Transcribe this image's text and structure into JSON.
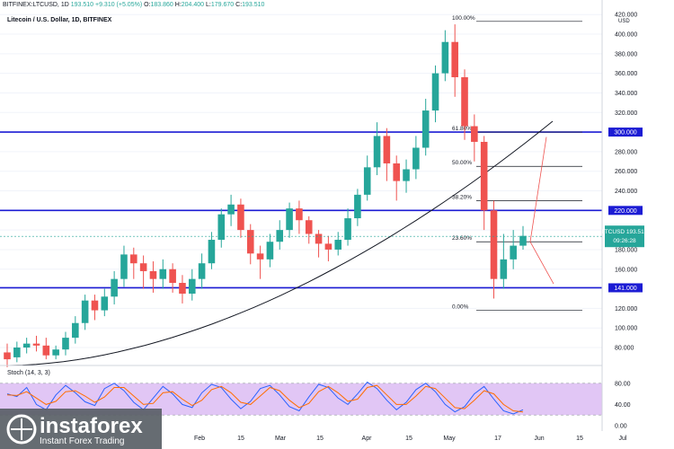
{
  "header": {
    "symbol_line": "BITFINEX:LTCUSD, 1D",
    "last": "193.510",
    "change": "+9.310 (+5.05%)",
    "open_label": "O:",
    "open": "183.860",
    "high_label": "H:",
    "high": "204.400",
    "low_label": "L:",
    "low": "179.670",
    "close_label": "C:",
    "close": "193.510",
    "subtitle": "Litecoin / U.S. Dollar, 1D, BITFINEX"
  },
  "price_scale": {
    "unit": "USD",
    "ticks": [
      "420.000",
      "400.000",
      "380.000",
      "360.000",
      "340.000",
      "320.000",
      "300.000",
      "280.000",
      "260.000",
      "240.000",
      "220.000",
      "200.000",
      "180.000",
      "160.000",
      "140.000",
      "120.000",
      "100.000",
      "80.000"
    ],
    "last_badge": {
      "symbol": "LTCUSD",
      "price": "193.510",
      "countdown": "09:26:28"
    },
    "level_badges": [
      "300.000",
      "220.000",
      "141.000"
    ]
  },
  "fib_labels": [
    "100.00%",
    "61.80%",
    "50.00%",
    "38.20%",
    "23.60%",
    "0.00%"
  ],
  "stoch": {
    "title": "Stoch (14, 3, 3)",
    "ticks": [
      "80.00",
      "40.00",
      "0.00"
    ]
  },
  "time_axis": [
    "Feb",
    "15",
    "Mar",
    "15",
    "Apr",
    "15",
    "May",
    "17",
    "Jun",
    "15",
    "Jul"
  ],
  "branding": {
    "name": "instaforex",
    "tagline": "Instant Forex Trading"
  },
  "colors": {
    "up": "#26a69a",
    "down": "#ef5350",
    "level": "#1c1cd4",
    "stoch_k": "#2962ff",
    "stoch_d": "#ff6d00",
    "stoch_band": "#e1c6f5"
  },
  "chart_data": {
    "type": "candlestick",
    "title": "Litecoin / U.S. Dollar, 1D, BITFINEX",
    "ylim": [
      60,
      420
    ],
    "horizontal_levels": [
      300,
      220,
      141
    ],
    "fibonacci": [
      {
        "label": "100.00%",
        "price": 413
      },
      {
        "label": "61.80%",
        "price": 300
      },
      {
        "label": "50.00%",
        "price": 265
      },
      {
        "label": "38.20%",
        "price": 230
      },
      {
        "label": "23.60%",
        "price": 188
      },
      {
        "label": "0.00%",
        "price": 118
      }
    ],
    "candles": [
      [
        75,
        68,
        84,
        60
      ],
      [
        70,
        80,
        86,
        65
      ],
      [
        80,
        84,
        90,
        74
      ],
      [
        84,
        82,
        92,
        76
      ],
      [
        82,
        72,
        90,
        68
      ],
      [
        72,
        78,
        82,
        68
      ],
      [
        78,
        90,
        96,
        72
      ],
      [
        90,
        105,
        112,
        84
      ],
      [
        105,
        128,
        134,
        98
      ],
      [
        128,
        118,
        134,
        108
      ],
      [
        118,
        132,
        140,
        112
      ],
      [
        132,
        150,
        158,
        124
      ],
      [
        150,
        175,
        184,
        142
      ],
      [
        175,
        166,
        182,
        150
      ],
      [
        166,
        158,
        174,
        140
      ],
      [
        158,
        150,
        168,
        136
      ],
      [
        150,
        160,
        170,
        140
      ],
      [
        160,
        146,
        166,
        136
      ],
      [
        146,
        135,
        154,
        125
      ],
      [
        135,
        150,
        160,
        128
      ],
      [
        150,
        166,
        176,
        140
      ],
      [
        166,
        190,
        198,
        160
      ],
      [
        190,
        216,
        222,
        182
      ],
      [
        216,
        226,
        236,
        204
      ],
      [
        226,
        200,
        232,
        192
      ],
      [
        200,
        176,
        206,
        165
      ],
      [
        176,
        170,
        184,
        150
      ],
      [
        170,
        188,
        196,
        162
      ],
      [
        188,
        200,
        210,
        180
      ],
      [
        200,
        222,
        228,
        192
      ],
      [
        222,
        210,
        230,
        196
      ],
      [
        210,
        196,
        214,
        186
      ],
      [
        196,
        186,
        200,
        172
      ],
      [
        186,
        180,
        194,
        168
      ],
      [
        180,
        190,
        198,
        174
      ],
      [
        190,
        212,
        222,
        184
      ],
      [
        212,
        236,
        242,
        204
      ],
      [
        236,
        264,
        276,
        230
      ],
      [
        264,
        296,
        310,
        256
      ],
      [
        296,
        268,
        304,
        250
      ],
      [
        268,
        250,
        276,
        230
      ],
      [
        250,
        262,
        272,
        238
      ],
      [
        262,
        284,
        296,
        252
      ],
      [
        284,
        322,
        334,
        276
      ],
      [
        322,
        360,
        368,
        310
      ],
      [
        360,
        392,
        404,
        352
      ],
      [
        392,
        356,
        410,
        336
      ],
      [
        356,
        306,
        364,
        292
      ],
      [
        306,
        290,
        318,
        270
      ],
      [
        290,
        220,
        296,
        200
      ],
      [
        220,
        150,
        230,
        130
      ],
      [
        150,
        170,
        196,
        140
      ],
      [
        170,
        184,
        200,
        160
      ],
      [
        184,
        194,
        204,
        180
      ]
    ],
    "projection": [
      [
        188,
        295
      ],
      [
        188,
        145
      ]
    ],
    "stoch_k": [
      60,
      55,
      72,
      40,
      30,
      58,
      76,
      62,
      45,
      38,
      70,
      80,
      66,
      44,
      30,
      52,
      74,
      60,
      40,
      34,
      62,
      78,
      72,
      50,
      32,
      46,
      70,
      76,
      58,
      36,
      28,
      54,
      78,
      72,
      52,
      40,
      60,
      82,
      70,
      48,
      30,
      44,
      68,
      80,
      64,
      40,
      26,
      36,
      60,
      74,
      50,
      28,
      22,
      30
    ],
    "stoch_d": [
      58,
      57,
      64,
      52,
      40,
      46,
      64,
      66,
      56,
      44,
      54,
      72,
      72,
      56,
      40,
      42,
      62,
      64,
      50,
      38,
      48,
      68,
      74,
      62,
      44,
      40,
      56,
      72,
      66,
      48,
      34,
      42,
      64,
      74,
      62,
      46,
      50,
      72,
      76,
      58,
      40,
      40,
      56,
      74,
      70,
      52,
      34,
      32,
      48,
      66,
      60,
      40,
      28,
      26
    ]
  }
}
